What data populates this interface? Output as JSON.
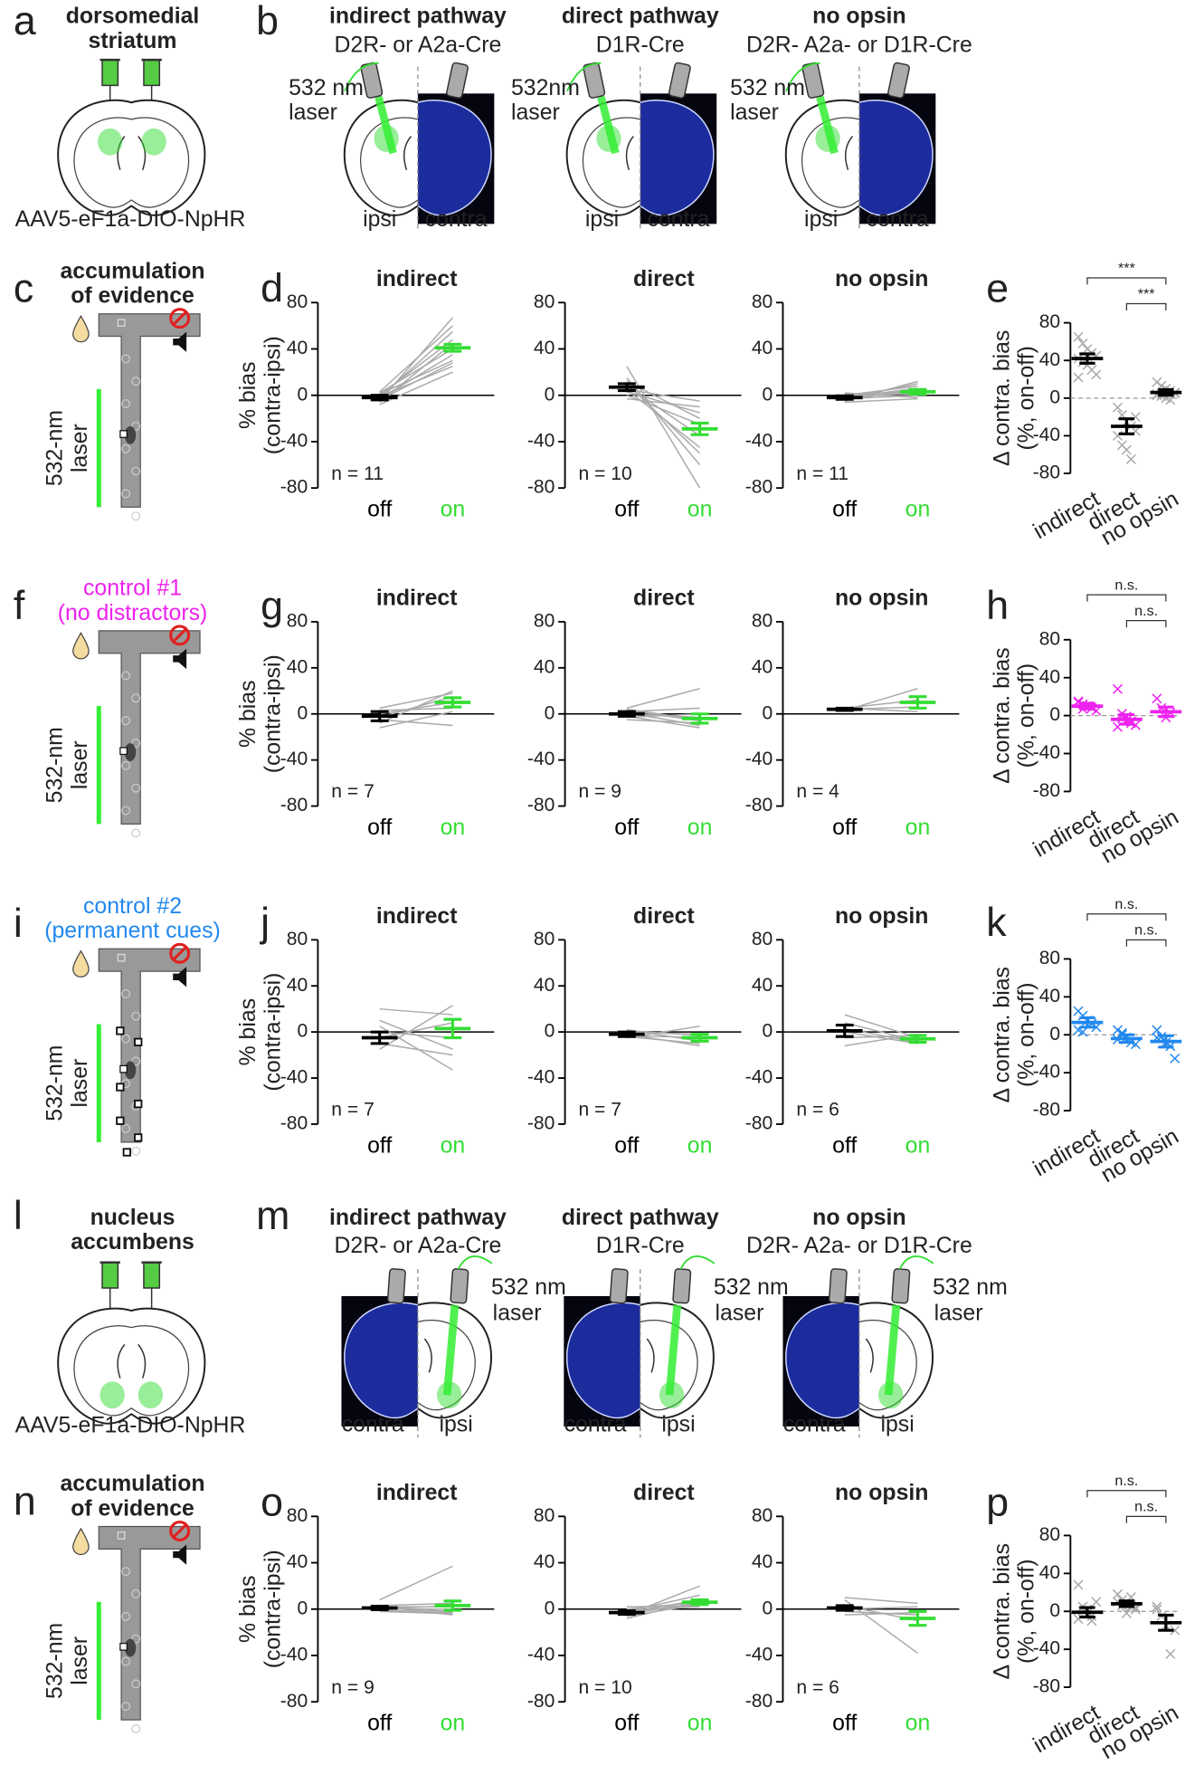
{
  "schematics": {
    "a": {
      "label": "a",
      "title": [
        "dorsomedial",
        "striatum"
      ],
      "virus": "AAV5-eF1a-DIO-NpHR"
    },
    "b": {
      "label": "b",
      "sides": [
        "ipsi",
        "contra"
      ],
      "groups": [
        {
          "title": "indirect pathway",
          "driver": "D2R- or A2a-Cre",
          "laser": [
            "532 nm",
            "laser"
          ]
        },
        {
          "title": "direct pathway",
          "driver": "D1R-Cre",
          "laser": [
            "532nm",
            "laser"
          ]
        },
        {
          "title": "no opsin",
          "driver": "D2R- A2a- or D1R-Cre",
          "laser": [
            "532 nm",
            "laser"
          ]
        }
      ]
    },
    "c": {
      "label": "c",
      "title": [
        "accumulation",
        "of evidence"
      ],
      "color": "#222222",
      "laser": [
        "532-nm",
        "laser"
      ]
    },
    "f": {
      "label": "f",
      "title": [
        "control #1",
        "(no distractors)"
      ],
      "color": "#ee22ee",
      "laser": [
        "532-nm",
        "laser"
      ]
    },
    "i": {
      "label": "i",
      "title": [
        "control #2",
        "(permanent cues)"
      ],
      "color": "#2288ee",
      "laser": [
        "532-nm",
        "laser"
      ]
    },
    "l": {
      "label": "l",
      "title": [
        "nucleus",
        "accumbens"
      ],
      "virus": "AAV5-eF1a-DIO-NpHR"
    },
    "m": {
      "label": "m",
      "sides": [
        "contra",
        "ipsi"
      ],
      "groups": [
        {
          "title": "indirect pathway",
          "driver": "D2R- or A2a-Cre",
          "laser": [
            "532 nm",
            "laser"
          ]
        },
        {
          "title": "direct pathway",
          "driver": "D1R-Cre",
          "laser": [
            "532 nm",
            "laser"
          ]
        },
        {
          "title": "no opsin",
          "driver": "D2R- A2a- or D1R-Cre",
          "laser": [
            "532 nm",
            "laser"
          ]
        }
      ]
    },
    "n": {
      "label": "n",
      "title": [
        "accumulation",
        "of evidence"
      ],
      "color": "#222222",
      "laser": [
        "532-nm",
        "laser"
      ]
    }
  },
  "chart_data": [
    {
      "type": "paired",
      "panel_label": "d",
      "title": "indirect",
      "ylabel": [
        "% bias",
        "(contra-ipsi)"
      ],
      "annotation": "n = 11",
      "categories": [
        "off",
        "on"
      ],
      "colors": [
        "#000000",
        "#33dd33"
      ],
      "means": [
        -2,
        41
      ],
      "errors": [
        2,
        3
      ],
      "subjects": [
        [
          -5,
          67
        ],
        [
          3,
          60
        ],
        [
          -2,
          55
        ],
        [
          0,
          48
        ],
        [
          -6,
          45
        ],
        [
          2,
          40
        ],
        [
          -3,
          35
        ],
        [
          1,
          30
        ],
        [
          -4,
          28
        ],
        [
          -1,
          25
        ],
        [
          -8,
          20
        ]
      ],
      "ylim": [
        -80,
        80
      ],
      "yticks": [
        -80,
        -40,
        0,
        40,
        80
      ]
    },
    {
      "type": "paired",
      "title": "direct",
      "annotation": "n = 10",
      "categories": [
        "off",
        "on"
      ],
      "colors": [
        "#000000",
        "#33dd33"
      ],
      "means": [
        7,
        -29
      ],
      "errors": [
        3,
        5
      ],
      "subjects": [
        [
          25,
          -80
        ],
        [
          15,
          -60
        ],
        [
          10,
          -50
        ],
        [
          5,
          -45
        ],
        [
          8,
          -35
        ],
        [
          0,
          -25
        ],
        [
          12,
          -20
        ],
        [
          3,
          -15
        ],
        [
          -3,
          -10
        ],
        [
          5,
          -5
        ]
      ],
      "ylim": [
        -80,
        80
      ],
      "yticks": [
        -80,
        -40,
        0,
        40,
        80
      ]
    },
    {
      "type": "paired",
      "title": "no opsin",
      "annotation": "n = 11",
      "categories": [
        "off",
        "on"
      ],
      "colors": [
        "#000000",
        "#33dd33"
      ],
      "means": [
        -2,
        3
      ],
      "errors": [
        1.5,
        2
      ],
      "subjects": [
        [
          -5,
          12
        ],
        [
          -3,
          10
        ],
        [
          0,
          8
        ],
        [
          -2,
          6
        ],
        [
          -4,
          5
        ],
        [
          1,
          3
        ],
        [
          -1,
          2
        ],
        [
          -3,
          0
        ],
        [
          2,
          -2
        ],
        [
          -6,
          -3
        ],
        [
          0,
          1
        ]
      ],
      "ylim": [
        -80,
        80
      ],
      "yticks": [
        -80,
        -40,
        0,
        40,
        80
      ]
    },
    {
      "type": "summary",
      "panel_label": "e",
      "ylabel": [
        "Δ contra. bias",
        "(%, on-off)"
      ],
      "categories": [
        "indirect",
        "direct",
        "no opsin"
      ],
      "color": "#000000",
      "point_color": "#aaaaaa",
      "means": [
        42,
        -30,
        6
      ],
      "errors": [
        5,
        8,
        3
      ],
      "points": [
        [
          65,
          58,
          52,
          48,
          45,
          42,
          38,
          35,
          30,
          25,
          22
        ],
        [
          -10,
          -18,
          -25,
          -30,
          -35,
          -40,
          -50,
          -55,
          -65,
          -20
        ],
        [
          17,
          13,
          10,
          8,
          6,
          4,
          2,
          0,
          -2,
          5,
          3
        ]
      ],
      "brackets": [
        {
          "from": "indirect",
          "to": "no opsin",
          "label": "***"
        },
        {
          "from": "direct",
          "to": "no opsin",
          "label": "***"
        }
      ],
      "ylim": [
        -80,
        80
      ],
      "yticks": [
        -80,
        -40,
        0,
        40,
        80
      ]
    },
    {
      "type": "paired",
      "panel_label": "g",
      "title": "indirect",
      "ylabel": [
        "% bias",
        "(contra-ipsi)"
      ],
      "annotation": "n = 7",
      "categories": [
        "off",
        "on"
      ],
      "colors": [
        "#000000",
        "#33dd33"
      ],
      "means": [
        -2,
        10
      ],
      "errors": [
        4,
        4
      ],
      "subjects": [
        [
          -8,
          20
        ],
        [
          5,
          18
        ],
        [
          -3,
          15
        ],
        [
          0,
          10
        ],
        [
          3,
          5
        ],
        [
          -12,
          2
        ],
        [
          -5,
          -10
        ]
      ],
      "ylim": [
        -80,
        80
      ],
      "yticks": [
        -80,
        -40,
        0,
        40,
        80
      ]
    },
    {
      "type": "paired",
      "title": "direct",
      "annotation": "n = 9",
      "categories": [
        "off",
        "on"
      ],
      "colors": [
        "#000000",
        "#33dd33"
      ],
      "means": [
        0,
        -4
      ],
      "errors": [
        2,
        4
      ],
      "subjects": [
        [
          5,
          22
        ],
        [
          2,
          5
        ],
        [
          -3,
          0
        ],
        [
          0,
          -3
        ],
        [
          4,
          -5
        ],
        [
          -5,
          -8
        ],
        [
          1,
          -10
        ],
        [
          -2,
          -12
        ],
        [
          3,
          -6
        ]
      ],
      "ylim": [
        -80,
        80
      ],
      "yticks": [
        -80,
        -40,
        0,
        40,
        80
      ]
    },
    {
      "type": "paired",
      "title": "no opsin",
      "annotation": "n = 4",
      "categories": [
        "off",
        "on"
      ],
      "colors": [
        "#000000",
        "#33dd33"
      ],
      "means": [
        4,
        10
      ],
      "errors": [
        1,
        5
      ],
      "subjects": [
        [
          3,
          22
        ],
        [
          5,
          12
        ],
        [
          4,
          6
        ],
        [
          5,
          2
        ]
      ],
      "ylim": [
        -80,
        80
      ],
      "yticks": [
        -80,
        -40,
        0,
        40,
        80
      ]
    },
    {
      "type": "summary",
      "panel_label": "h",
      "ylabel": [
        "Δ contra. bias",
        "(%, on-off)"
      ],
      "categories": [
        "indirect",
        "direct",
        "no opsin"
      ],
      "color": "#ee22ee",
      "point_color": "#ee22ee",
      "means": [
        10,
        -4,
        4
      ],
      "errors": [
        3,
        5,
        5
      ],
      "points": [
        [
          15,
          12,
          10,
          8,
          5,
          14,
          7
        ],
        [
          28,
          2,
          -5,
          -8,
          -10,
          -12,
          -3,
          -1,
          -6
        ],
        [
          18,
          8,
          -2,
          3
        ]
      ],
      "brackets": [
        {
          "from": "indirect",
          "to": "no opsin",
          "label": "n.s."
        },
        {
          "from": "direct",
          "to": "no opsin",
          "label": "n.s."
        }
      ],
      "ylim": [
        -80,
        80
      ],
      "yticks": [
        -80,
        -40,
        0,
        40,
        80
      ]
    },
    {
      "type": "paired",
      "panel_label": "j",
      "title": "indirect",
      "ylabel": [
        "% bias",
        "(contra-ipsi)"
      ],
      "annotation": "n = 7",
      "categories": [
        "off",
        "on"
      ],
      "colors": [
        "#000000",
        "#33dd33"
      ],
      "means": [
        -5,
        3
      ],
      "errors": [
        5,
        8
      ],
      "subjects": [
        [
          -15,
          23
        ],
        [
          20,
          15
        ],
        [
          -5,
          8
        ],
        [
          0,
          -5
        ],
        [
          10,
          -15
        ],
        [
          -10,
          -20
        ],
        [
          5,
          -33
        ]
      ],
      "ylim": [
        -80,
        80
      ],
      "yticks": [
        -80,
        -40,
        0,
        40,
        80
      ]
    },
    {
      "type": "paired",
      "title": "direct",
      "annotation": "n = 7",
      "categories": [
        "off",
        "on"
      ],
      "colors": [
        "#000000",
        "#33dd33"
      ],
      "means": [
        -2,
        -5
      ],
      "errors": [
        2,
        3
      ],
      "subjects": [
        [
          -5,
          5
        ],
        [
          0,
          -2
        ],
        [
          -3,
          -5
        ],
        [
          2,
          -8
        ],
        [
          -4,
          -10
        ],
        [
          1,
          -3
        ],
        [
          -2,
          -12
        ]
      ],
      "ylim": [
        -80,
        80
      ],
      "yticks": [
        -80,
        -40,
        0,
        40,
        80
      ]
    },
    {
      "type": "paired",
      "title": "no opsin",
      "annotation": "n = 6",
      "categories": [
        "off",
        "on"
      ],
      "colors": [
        "#000000",
        "#33dd33"
      ],
      "means": [
        1,
        -6
      ],
      "errors": [
        5,
        3
      ],
      "subjects": [
        [
          15,
          -5
        ],
        [
          8,
          -8
        ],
        [
          -5,
          -3
        ],
        [
          0,
          -10
        ],
        [
          -12,
          -2
        ],
        [
          3,
          -9
        ]
      ],
      "ylim": [
        -80,
        80
      ],
      "yticks": [
        -80,
        -40,
        0,
        40,
        80
      ]
    },
    {
      "type": "summary",
      "panel_label": "k",
      "ylabel": [
        "Δ contra. bias",
        "(%, on-off)"
      ],
      "categories": [
        "indirect",
        "direct",
        "no opsin"
      ],
      "color": "#2288ee",
      "point_color": "#2288ee",
      "means": [
        13,
        -4,
        -7
      ],
      "errors": [
        5,
        4,
        6
      ],
      "points": [
        [
          25,
          20,
          15,
          12,
          8,
          5,
          3
        ],
        [
          5,
          2,
          -3,
          -8,
          -10,
          -5,
          0
        ],
        [
          5,
          -2,
          -8,
          -12,
          -25,
          -3
        ]
      ],
      "brackets": [
        {
          "from": "indirect",
          "to": "no opsin",
          "label": "n.s."
        },
        {
          "from": "direct",
          "to": "no opsin",
          "label": "n.s."
        }
      ],
      "ylim": [
        -80,
        80
      ],
      "yticks": [
        -80,
        -40,
        0,
        40,
        80
      ]
    },
    {
      "type": "paired",
      "panel_label": "o",
      "title": "indirect",
      "ylabel": [
        "% bias",
        "(contra-ipsi)"
      ],
      "annotation": "n = 9",
      "categories": [
        "off",
        "on"
      ],
      "colors": [
        "#000000",
        "#33dd33"
      ],
      "means": [
        1,
        3
      ],
      "errors": [
        1.5,
        4
      ],
      "subjects": [
        [
          8,
          37
        ],
        [
          3,
          5
        ],
        [
          2,
          2
        ],
        [
          0,
          0
        ],
        [
          1,
          -2
        ],
        [
          -1,
          -3
        ],
        [
          2,
          -5
        ],
        [
          0,
          3
        ],
        [
          -2,
          -4
        ]
      ],
      "ylim": [
        -80,
        80
      ],
      "yticks": [
        -80,
        -40,
        0,
        40,
        80
      ]
    },
    {
      "type": "paired",
      "title": "direct",
      "annotation": "n = 10",
      "categories": [
        "off",
        "on"
      ],
      "colors": [
        "#000000",
        "#33dd33"
      ],
      "means": [
        -3,
        6
      ],
      "errors": [
        1.5,
        2
      ],
      "subjects": [
        [
          -5,
          20
        ],
        [
          -2,
          12
        ],
        [
          -3,
          8
        ],
        [
          0,
          6
        ],
        [
          -4,
          5
        ],
        [
          -6,
          4
        ],
        [
          2,
          3
        ],
        [
          -1,
          2
        ],
        [
          -8,
          7
        ],
        [
          -3,
          5
        ]
      ],
      "ylim": [
        -80,
        80
      ],
      "yticks": [
        -80,
        -40,
        0,
        40,
        80
      ]
    },
    {
      "type": "paired",
      "title": "no opsin",
      "annotation": "n = 6",
      "categories": [
        "off",
        "on"
      ],
      "colors": [
        "#000000",
        "#33dd33"
      ],
      "means": [
        1,
        -8
      ],
      "errors": [
        2,
        6
      ],
      "subjects": [
        [
          10,
          5
        ],
        [
          8,
          -38
        ],
        [
          3,
          -10
        ],
        [
          -2,
          -5
        ],
        [
          0,
          2
        ],
        [
          -5,
          -3
        ]
      ],
      "ylim": [
        -80,
        80
      ],
      "yticks": [
        -80,
        -40,
        0,
        40,
        80
      ]
    },
    {
      "type": "summary",
      "panel_label": "p",
      "ylabel": [
        "Δ contra. bias",
        "(%, on-off)"
      ],
      "categories": [
        "indirect",
        "direct",
        "no opsin"
      ],
      "color": "#000000",
      "point_color": "#aaaaaa",
      "means": [
        -1,
        8,
        -12
      ],
      "errors": [
        5,
        3,
        8
      ],
      "points": [
        [
          28,
          5,
          -2,
          -5,
          10,
          -8,
          0,
          2,
          -10
        ],
        [
          18,
          12,
          8,
          5,
          2,
          10,
          6,
          -2,
          15,
          4
        ],
        [
          5,
          -5,
          -15,
          -45,
          -20,
          2
        ]
      ],
      "brackets": [
        {
          "from": "indirect",
          "to": "no opsin",
          "label": "n.s."
        },
        {
          "from": "direct",
          "to": "no opsin",
          "label": "n.s."
        }
      ],
      "ylim": [
        -80,
        80
      ],
      "yticks": [
        -80,
        -40,
        0,
        40,
        80
      ]
    }
  ]
}
